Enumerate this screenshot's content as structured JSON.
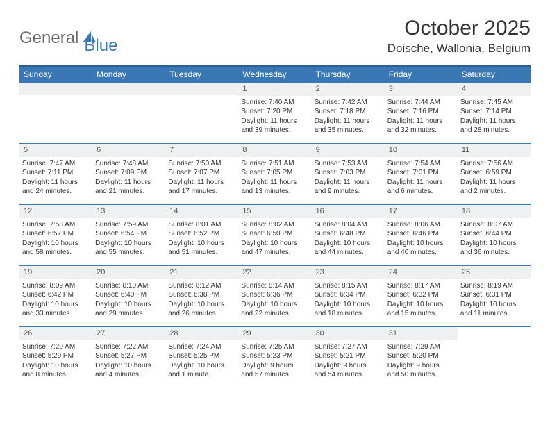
{
  "logo": {
    "part1": "General",
    "part2": "Blue"
  },
  "title": "October 2025",
  "location": "Doische, Wallonia, Belgium",
  "colors": {
    "headerBg": "#3a78b5",
    "border": "#3a78b5",
    "dayBg": "#eef0f1",
    "text": "#333333",
    "logoGray": "#6a6a6a"
  },
  "dayHeaders": [
    "Sunday",
    "Monday",
    "Tuesday",
    "Wednesday",
    "Thursday",
    "Friday",
    "Saturday"
  ],
  "weeks": [
    [
      null,
      null,
      null,
      {
        "n": "1",
        "sr": "Sunrise: 7:40 AM",
        "ss": "Sunset: 7:20 PM",
        "d1": "Daylight: 11 hours",
        "d2": "and 39 minutes."
      },
      {
        "n": "2",
        "sr": "Sunrise: 7:42 AM",
        "ss": "Sunset: 7:18 PM",
        "d1": "Daylight: 11 hours",
        "d2": "and 35 minutes."
      },
      {
        "n": "3",
        "sr": "Sunrise: 7:44 AM",
        "ss": "Sunset: 7:16 PM",
        "d1": "Daylight: 11 hours",
        "d2": "and 32 minutes."
      },
      {
        "n": "4",
        "sr": "Sunrise: 7:45 AM",
        "ss": "Sunset: 7:14 PM",
        "d1": "Daylight: 11 hours",
        "d2": "and 28 minutes."
      }
    ],
    [
      {
        "n": "5",
        "sr": "Sunrise: 7:47 AM",
        "ss": "Sunset: 7:11 PM",
        "d1": "Daylight: 11 hours",
        "d2": "and 24 minutes."
      },
      {
        "n": "6",
        "sr": "Sunrise: 7:48 AM",
        "ss": "Sunset: 7:09 PM",
        "d1": "Daylight: 11 hours",
        "d2": "and 21 minutes."
      },
      {
        "n": "7",
        "sr": "Sunrise: 7:50 AM",
        "ss": "Sunset: 7:07 PM",
        "d1": "Daylight: 11 hours",
        "d2": "and 17 minutes."
      },
      {
        "n": "8",
        "sr": "Sunrise: 7:51 AM",
        "ss": "Sunset: 7:05 PM",
        "d1": "Daylight: 11 hours",
        "d2": "and 13 minutes."
      },
      {
        "n": "9",
        "sr": "Sunrise: 7:53 AM",
        "ss": "Sunset: 7:03 PM",
        "d1": "Daylight: 11 hours",
        "d2": "and 9 minutes."
      },
      {
        "n": "10",
        "sr": "Sunrise: 7:54 AM",
        "ss": "Sunset: 7:01 PM",
        "d1": "Daylight: 11 hours",
        "d2": "and 6 minutes."
      },
      {
        "n": "11",
        "sr": "Sunrise: 7:56 AM",
        "ss": "Sunset: 6:59 PM",
        "d1": "Daylight: 11 hours",
        "d2": "and 2 minutes."
      }
    ],
    [
      {
        "n": "12",
        "sr": "Sunrise: 7:58 AM",
        "ss": "Sunset: 6:57 PM",
        "d1": "Daylight: 10 hours",
        "d2": "and 58 minutes."
      },
      {
        "n": "13",
        "sr": "Sunrise: 7:59 AM",
        "ss": "Sunset: 6:54 PM",
        "d1": "Daylight: 10 hours",
        "d2": "and 55 minutes."
      },
      {
        "n": "14",
        "sr": "Sunrise: 8:01 AM",
        "ss": "Sunset: 6:52 PM",
        "d1": "Daylight: 10 hours",
        "d2": "and 51 minutes."
      },
      {
        "n": "15",
        "sr": "Sunrise: 8:02 AM",
        "ss": "Sunset: 6:50 PM",
        "d1": "Daylight: 10 hours",
        "d2": "and 47 minutes."
      },
      {
        "n": "16",
        "sr": "Sunrise: 8:04 AM",
        "ss": "Sunset: 6:48 PM",
        "d1": "Daylight: 10 hours",
        "d2": "and 44 minutes."
      },
      {
        "n": "17",
        "sr": "Sunrise: 8:06 AM",
        "ss": "Sunset: 6:46 PM",
        "d1": "Daylight: 10 hours",
        "d2": "and 40 minutes."
      },
      {
        "n": "18",
        "sr": "Sunrise: 8:07 AM",
        "ss": "Sunset: 6:44 PM",
        "d1": "Daylight: 10 hours",
        "d2": "and 36 minutes."
      }
    ],
    [
      {
        "n": "19",
        "sr": "Sunrise: 8:09 AM",
        "ss": "Sunset: 6:42 PM",
        "d1": "Daylight: 10 hours",
        "d2": "and 33 minutes."
      },
      {
        "n": "20",
        "sr": "Sunrise: 8:10 AM",
        "ss": "Sunset: 6:40 PM",
        "d1": "Daylight: 10 hours",
        "d2": "and 29 minutes."
      },
      {
        "n": "21",
        "sr": "Sunrise: 8:12 AM",
        "ss": "Sunset: 6:38 PM",
        "d1": "Daylight: 10 hours",
        "d2": "and 26 minutes."
      },
      {
        "n": "22",
        "sr": "Sunrise: 8:14 AM",
        "ss": "Sunset: 6:36 PM",
        "d1": "Daylight: 10 hours",
        "d2": "and 22 minutes."
      },
      {
        "n": "23",
        "sr": "Sunrise: 8:15 AM",
        "ss": "Sunset: 6:34 PM",
        "d1": "Daylight: 10 hours",
        "d2": "and 18 minutes."
      },
      {
        "n": "24",
        "sr": "Sunrise: 8:17 AM",
        "ss": "Sunset: 6:32 PM",
        "d1": "Daylight: 10 hours",
        "d2": "and 15 minutes."
      },
      {
        "n": "25",
        "sr": "Sunrise: 8:19 AM",
        "ss": "Sunset: 6:31 PM",
        "d1": "Daylight: 10 hours",
        "d2": "and 11 minutes."
      }
    ],
    [
      {
        "n": "26",
        "sr": "Sunrise: 7:20 AM",
        "ss": "Sunset: 5:29 PM",
        "d1": "Daylight: 10 hours",
        "d2": "and 8 minutes."
      },
      {
        "n": "27",
        "sr": "Sunrise: 7:22 AM",
        "ss": "Sunset: 5:27 PM",
        "d1": "Daylight: 10 hours",
        "d2": "and 4 minutes."
      },
      {
        "n": "28",
        "sr": "Sunrise: 7:24 AM",
        "ss": "Sunset: 5:25 PM",
        "d1": "Daylight: 10 hours",
        "d2": "and 1 minute."
      },
      {
        "n": "29",
        "sr": "Sunrise: 7:25 AM",
        "ss": "Sunset: 5:23 PM",
        "d1": "Daylight: 9 hours",
        "d2": "and 57 minutes."
      },
      {
        "n": "30",
        "sr": "Sunrise: 7:27 AM",
        "ss": "Sunset: 5:21 PM",
        "d1": "Daylight: 9 hours",
        "d2": "and 54 minutes."
      },
      {
        "n": "31",
        "sr": "Sunrise: 7:29 AM",
        "ss": "Sunset: 5:20 PM",
        "d1": "Daylight: 9 hours",
        "d2": "and 50 minutes."
      },
      null
    ]
  ]
}
